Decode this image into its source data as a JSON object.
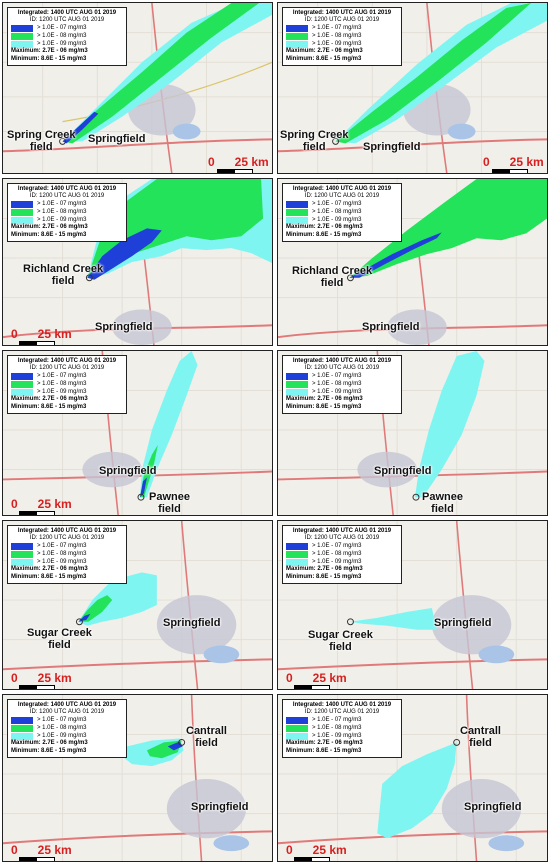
{
  "legend": {
    "integrated": "Integrated: 1400 UTC AUG 01 2019",
    "id": "ID: 1200 UTC AUG 01 2019",
    "levels": [
      {
        "label": "> 1.0E - 07 mg/m3",
        "color": "#1e3fd8"
      },
      {
        "label": "> 1.0E - 08 mg/m3",
        "color": "#22e35a"
      },
      {
        "label": "> 1.0E - 09 mg/m3",
        "color": "#7ff5f2"
      }
    ],
    "maximum": "Maximum: 2.7E - 06 mg/m3",
    "minimum": "Minimum: 8.6E - 15 mg/m3"
  },
  "scale_text": "0      25 km",
  "city": "Springfield",
  "sites": {
    "spring_creek": "Spring Creek\nfield",
    "richland_creek": "Richland Creek\nfield",
    "pawnee": "Pawnee\nfield",
    "sugar_creek": "Sugar Creek\nfield",
    "cantrall": "Cantrall\nfield"
  },
  "colors": {
    "high": "#1e3fd8",
    "mid": "#22e35a",
    "low": "#7ff5f2",
    "map_bg": "#f1efe9",
    "urban": "#c6c6d4",
    "water": "#a9c4e6",
    "highway": "#e07a7a",
    "road": "#d9c56b"
  }
}
